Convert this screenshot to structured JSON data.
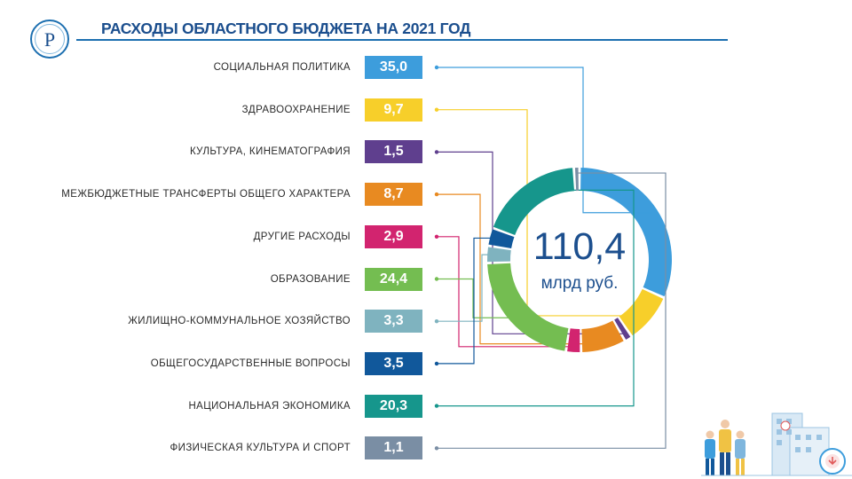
{
  "title": "РАСХОДЫ ОБЛАСТНОГО БЮДЖЕТА НА 2021 ГОД",
  "logo_letter": "Р",
  "chart_data": {
    "type": "donut",
    "title": "РАСХОДЫ ОБЛАСТНОГО БЮДЖЕТА НА 2021 ГОД",
    "total": "110,4",
    "unit": "млрд руб.",
    "categories": [
      "СОЦИАЛЬНАЯ ПОЛИТИКА",
      "ЗДРАВООХРАНЕНИЕ",
      "КУЛЬТУРА, КИНЕМАТОГРАФИЯ",
      "МЕЖБЮДЖЕТНЫЕ ТРАНСФЕРТЫ ОБЩЕГО ХАРАКТЕРА",
      "ДРУГИЕ РАСХОДЫ",
      "ОБРАЗОВАНИЕ",
      "ЖИЛИЩНО-КОММУНАЛЬНОЕ ХОЗЯЙСТВО",
      "ОБЩЕГОСУДАРСТВЕННЫЕ ВОПРОСЫ",
      "НАЦИОНАЛЬНАЯ ЭКОНОМИКА",
      "ФИЗИЧЕСКАЯ КУЛЬТУРА И СПОРТ"
    ],
    "values": [
      35.0,
      9.7,
      1.5,
      8.7,
      2.9,
      24.4,
      3.3,
      3.5,
      20.3,
      1.1
    ],
    "value_labels": [
      "35,0",
      "9,7",
      "1,5",
      "8,7",
      "2,9",
      "24,4",
      "3,3",
      "3,5",
      "20,3",
      "1,1"
    ],
    "colors": [
      "#3d9ddc",
      "#f7cf2a",
      "#5f3f8e",
      "#e88a21",
      "#d2246f",
      "#74bd51",
      "#7fb3bf",
      "#11589b",
      "#16968c",
      "#7a8ea4"
    ]
  }
}
